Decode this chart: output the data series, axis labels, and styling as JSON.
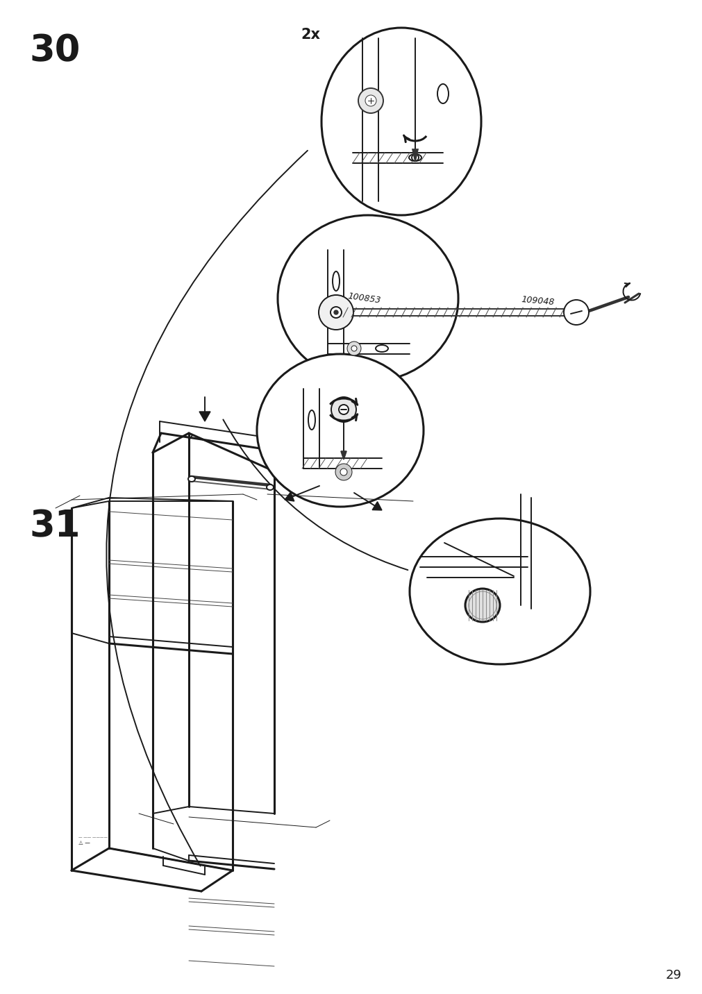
{
  "bg_color": "#ffffff",
  "line_color": "#1a1a1a",
  "step30_label": "30",
  "step31_label": "31",
  "page_number": "29",
  "multiplier_text": "2x",
  "part_number_1": "100853",
  "part_number_2": "109048",
  "label_fontsize": 38,
  "small_fontsize": 10,
  "page_num_fontsize": 13,
  "lw": 1.4,
  "lw_thick": 2.2,
  "lw_thin": 0.7,
  "lw_fill": 3.0
}
